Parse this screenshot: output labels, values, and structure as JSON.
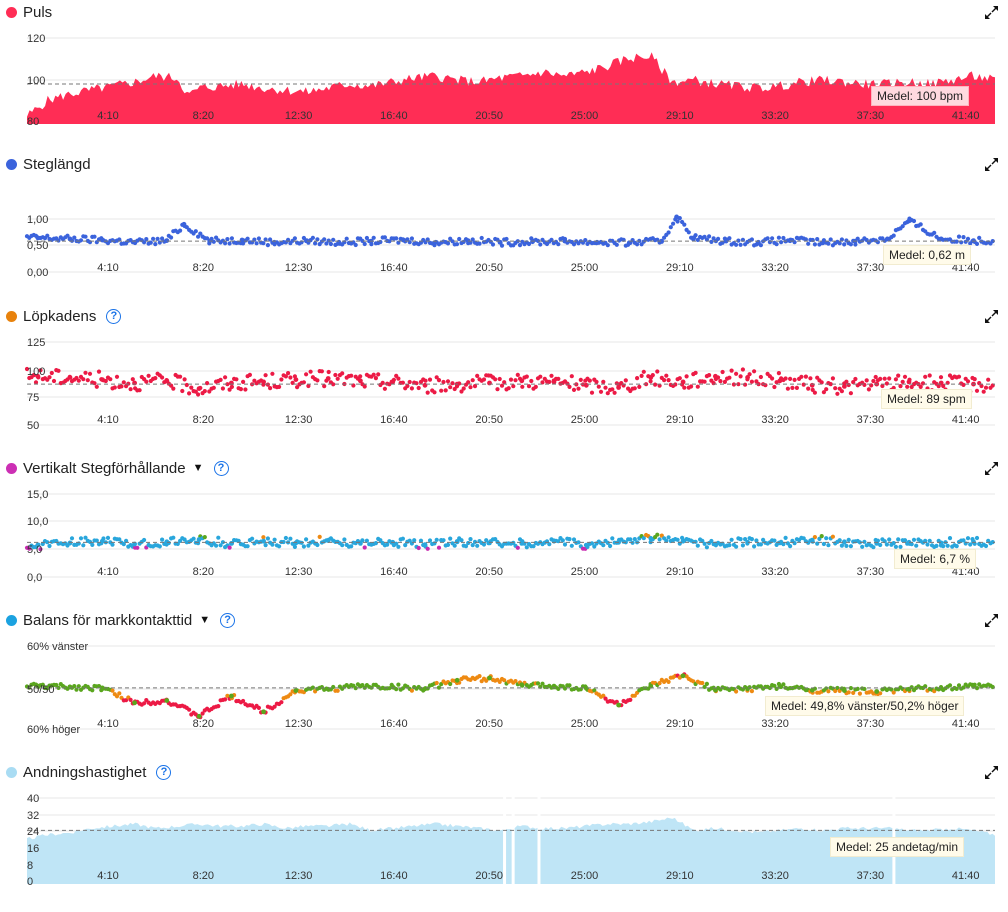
{
  "colors": {
    "heart_rate": "#ff2d55",
    "stride": "#3b63dc",
    "cadence_dot": "#e8820c",
    "cadence_series": "#ec1a45",
    "vertical_dot": "#cc2fb4",
    "gct_dot": "#1ba2e0",
    "breath_fill": "#bfe5f6",
    "breath_dot": "#a9dcf3",
    "green": "#5aa61e",
    "orange": "#ee8a12",
    "red": "#ec1a45",
    "purple": "#c82bb0",
    "blue": "#29a6dc"
  },
  "x_ticks": [
    "4:10",
    "8:20",
    "12:30",
    "16:40",
    "20:50",
    "25:00",
    "29:10",
    "33:20",
    "37:30",
    "41:40"
  ],
  "panels": [
    {
      "key": "heart_rate",
      "title": "Puls",
      "avg_label": "Medel: 100 bpm",
      "help": false,
      "dropdown": false,
      "y_ticks": [
        "120",
        "100",
        "80"
      ]
    },
    {
      "key": "stride",
      "title": "Steglängd",
      "avg_label": "Medel: 0,62 m",
      "help": false,
      "dropdown": false,
      "y_ticks": [
        "1,00",
        "0,50",
        "0,00"
      ]
    },
    {
      "key": "cadence",
      "title": "Löpkadens",
      "avg_label": "Medel: 89 spm",
      "help": true,
      "dropdown": false,
      "y_ticks": [
        "125",
        "100",
        "75",
        "50"
      ]
    },
    {
      "key": "vertical",
      "title": "Vertikalt Stegförhållande",
      "avg_label": "Medel: 6,7 %",
      "help": true,
      "dropdown": true,
      "y_ticks": [
        "15,0",
        "10,0",
        "5,0",
        "0,0"
      ]
    },
    {
      "key": "gct",
      "title": "Balans för markkontakttid",
      "avg_label": "Medel: 49,8% vänster/50,2% höger",
      "help": true,
      "dropdown": true,
      "y_ticks": [
        "60% vänster",
        "50/50",
        "60% höger"
      ]
    },
    {
      "key": "breath",
      "title": "Andningshastighet",
      "avg_label": "Medel: 25 andetag/min",
      "help": true,
      "dropdown": false,
      "y_ticks": [
        "40",
        "32",
        "24",
        "16",
        "8",
        "0"
      ]
    }
  ],
  "chart_data": [
    {
      "type": "area",
      "title": "Puls",
      "x_unit": "min",
      "xlim": [
        0,
        45
      ],
      "ylim": [
        80,
        125
      ],
      "average": 100,
      "x": [
        0,
        1,
        2,
        3,
        4,
        5,
        6,
        7,
        7.5,
        8,
        9,
        10,
        11,
        12,
        13,
        14,
        15,
        16,
        17,
        18,
        19,
        20,
        21,
        22,
        23,
        24,
        25,
        26,
        27,
        28,
        29,
        30,
        31,
        32,
        33,
        34,
        35,
        36,
        37,
        38,
        39,
        40,
        41,
        42,
        43,
        44,
        45
      ],
      "y": [
        84,
        92,
        95,
        97,
        99,
        101,
        104,
        103,
        94,
        98,
        99,
        100,
        98,
        97,
        96,
        98,
        100,
        99,
        101,
        103,
        104,
        102,
        101,
        103,
        104,
        106,
        104,
        106,
        109,
        113,
        114,
        101,
        102,
        100,
        99,
        98,
        99,
        101,
        102,
        101,
        100,
        100,
        101,
        100,
        102,
        104,
        102
      ]
    },
    {
      "type": "scatter",
      "title": "Steglängd",
      "x_unit": "min",
      "xlim": [
        0,
        45
      ],
      "ylim": [
        0,
        1.6
      ],
      "average": 0.62,
      "x": [
        0.5,
        2,
        3.5,
        5,
        6.5,
        7.3,
        8.5,
        10,
        11.5,
        13,
        14.5,
        16,
        17.5,
        19,
        20.5,
        22,
        23.5,
        25,
        26.5,
        28,
        29.5,
        30.2,
        31,
        32.5,
        34,
        35.5,
        37,
        38.5,
        40,
        41,
        42.5,
        44
      ],
      "y": [
        0.68,
        0.66,
        0.64,
        0.6,
        0.63,
        0.92,
        0.62,
        0.64,
        0.6,
        0.63,
        0.6,
        0.62,
        0.64,
        0.6,
        0.63,
        0.6,
        0.61,
        0.62,
        0.6,
        0.59,
        0.62,
        1.05,
        0.68,
        0.62,
        0.6,
        0.64,
        0.59,
        0.62,
        0.66,
        0.98,
        0.66,
        0.63
      ]
    },
    {
      "type": "scatter",
      "title": "Löpkadens",
      "x_unit": "min",
      "xlim": [
        0,
        45
      ],
      "ylim": [
        50,
        130
      ],
      "average": 89,
      "x": [
        0.5,
        2,
        3.5,
        5,
        6.5,
        8,
        9.5,
        11,
        12.5,
        14,
        15.5,
        17,
        18.5,
        20,
        21.5,
        23,
        24.5,
        26,
        27.5,
        29,
        30.5,
        32,
        33.5,
        35,
        36.5,
        38,
        39.5,
        41,
        42.5,
        44
      ],
      "y": [
        96,
        95,
        93,
        90,
        92,
        85,
        90,
        91,
        93,
        94,
        92,
        91,
        88,
        89,
        90,
        92,
        91,
        88,
        86,
        95,
        91,
        96,
        95,
        92,
        88,
        87,
        89,
        91,
        90,
        89
      ]
    },
    {
      "type": "scatter",
      "title": "Vertikalt Stegförhållande",
      "x_unit": "min",
      "xlim": [
        0,
        45
      ],
      "ylim": [
        0,
        16
      ],
      "average": 6.7,
      "x": [
        0.5,
        2,
        3.5,
        5,
        6.5,
        8,
        9.5,
        11,
        12.5,
        14,
        15.5,
        17,
        18.5,
        20,
        21.5,
        23,
        24.5,
        26,
        27.5,
        29,
        30.5,
        32,
        33.5,
        35,
        36.5,
        38,
        39.5,
        41,
        42.5,
        44
      ],
      "y": [
        6.2,
        6.6,
        6.9,
        6.4,
        6.8,
        7.2,
        6.5,
        6.9,
        6.6,
        7.0,
        6.5,
        6.7,
        6.3,
        6.8,
        6.6,
        6.5,
        6.9,
        6.2,
        6.7,
        7.4,
        6.9,
        6.4,
        6.7,
        6.6,
        7.1,
        6.8,
        6.5,
        6.7,
        6.6,
        6.8
      ]
    },
    {
      "type": "scatter",
      "title": "Balans för markkontakttid",
      "x_unit": "min",
      "xlim": [
        0,
        45
      ],
      "ylim": [
        40,
        60
      ],
      "average_left_percent": 49.8,
      "average_right_percent": 50.2,
      "x": [
        0.5,
        2,
        3.5,
        5,
        6.5,
        8,
        9.5,
        11,
        12.5,
        14,
        15.5,
        17,
        18.5,
        20,
        21.5,
        23,
        24.5,
        26,
        27.5,
        29,
        30.5,
        32,
        33.5,
        35,
        36.5,
        38,
        39.5,
        41,
        42.5,
        44
      ],
      "left_percent": [
        50.2,
        50.0,
        49.8,
        46.5,
        47.0,
        43.5,
        48.0,
        44.5,
        49.2,
        49.5,
        50.2,
        50.0,
        49.6,
        51.5,
        52.0,
        50.5,
        50.2,
        49.7,
        46.0,
        50.2,
        52.5,
        49.3,
        49.6,
        50.1,
        49.3,
        49.2,
        49.0,
        49.5,
        49.7,
        50.1
      ]
    },
    {
      "type": "area",
      "title": "Andningshastighet",
      "x_unit": "min",
      "xlim": [
        0,
        45
      ],
      "ylim": [
        0,
        42
      ],
      "average": 25,
      "x": [
        0,
        1,
        2,
        3,
        4,
        5,
        6,
        7,
        8,
        9,
        10,
        11,
        12,
        13,
        14,
        15,
        16,
        17,
        18,
        19,
        20,
        21,
        22,
        23,
        24,
        25,
        26,
        27,
        28,
        29,
        30,
        31,
        32,
        33,
        34,
        35,
        36,
        37,
        38,
        39,
        40,
        41,
        42,
        43,
        44,
        45
      ],
      "y": [
        21,
        23,
        24,
        26,
        27,
        28,
        26,
        27,
        28,
        27,
        27,
        28,
        26,
        27,
        27,
        28,
        25,
        26,
        27,
        28,
        27,
        26,
        25,
        27,
        26,
        26,
        27,
        28,
        28,
        29,
        31,
        25,
        26,
        25,
        24,
        25,
        26,
        25,
        26,
        26,
        26,
        25,
        25,
        26,
        25,
        23
      ]
    }
  ]
}
